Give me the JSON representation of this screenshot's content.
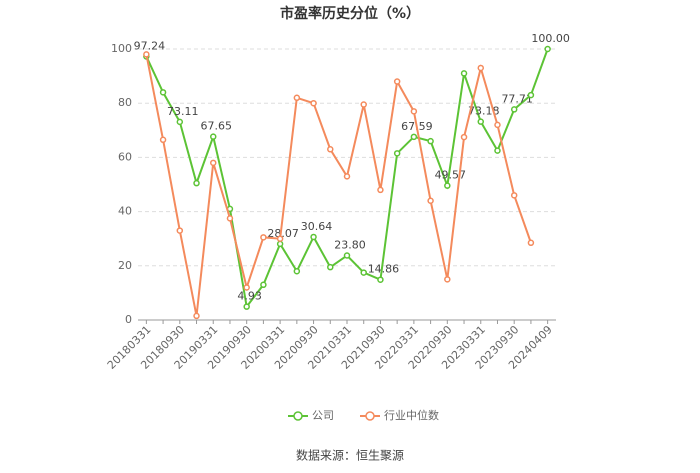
{
  "chart_data": {
    "type": "line",
    "title": "市盈率历史分位（%）",
    "categories": [
      "20180331",
      null,
      "20180930",
      null,
      "20190331",
      null,
      "20190930",
      null,
      "20200331",
      null,
      "20200930",
      null,
      "20210331",
      null,
      "20210930",
      null,
      "20220331",
      null,
      "20220930",
      null,
      "20230331",
      null,
      "20230930",
      null,
      "20240409"
    ],
    "series": [
      {
        "name": "公司",
        "color": "#5cc335",
        "values": [
          97.24,
          84,
          73.11,
          50.5,
          67.65,
          41,
          4.93,
          13,
          28.07,
          18,
          30.64,
          19.5,
          23.8,
          17.5,
          14.86,
          61.5,
          67.59,
          66,
          49.57,
          91,
          73.18,
          62.5,
          77.71,
          83,
          100
        ],
        "value_labels": [
          "97.24",
          null,
          "73.11",
          null,
          "67.65",
          null,
          "4.93",
          null,
          "28.07",
          null,
          "30.64",
          null,
          "23.80",
          null,
          "14.86",
          null,
          "67.59",
          null,
          "49.57",
          null,
          "73.18",
          null,
          "77.71",
          null,
          "100.00"
        ]
      },
      {
        "name": "行业中位数",
        "color": "#f48a5c",
        "values": [
          98,
          66.5,
          33,
          1.5,
          58,
          37.5,
          12,
          30.5,
          30,
          82,
          80,
          63,
          53,
          79.5,
          48,
          88,
          77,
          44,
          15,
          67.5,
          93,
          72,
          46,
          28.5,
          null
        ]
      }
    ],
    "ylim": [
      0,
      100
    ],
    "yticks": [
      0,
      20,
      40,
      60,
      80,
      100
    ],
    "grid": true,
    "source": "数据来源：恒生聚源"
  }
}
